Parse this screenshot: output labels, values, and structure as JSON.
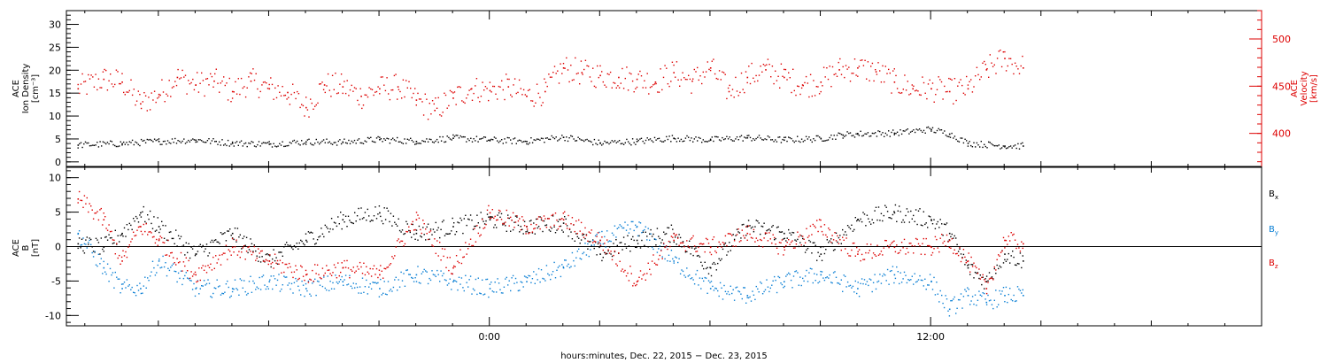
{
  "chart_data": [
    {
      "type": "scatter",
      "left_axis": {
        "label_lines": [
          "ACE",
          "Ion Density",
          "[cm⁻³]"
        ],
        "ylim": [
          -1,
          33
        ],
        "ticks": [
          0,
          5,
          10,
          15,
          20,
          25,
          30
        ],
        "color": "#000000"
      },
      "right_axis": {
        "label_lines": [
          "ACE",
          "Velocity",
          "[km/s]"
        ],
        "ylim": [
          365,
          530
        ],
        "ticks": [
          400,
          450,
          500
        ],
        "color": "#dd0000"
      },
      "series": [
        {
          "color": "#000000",
          "axis": "left",
          "x": [
            -11.2,
            -10,
            -9,
            -8,
            -7,
            -6,
            -5,
            -4,
            -3,
            -2,
            -1,
            0,
            1,
            2,
            3,
            4,
            5,
            6,
            7,
            8,
            9,
            9.6,
            10,
            11,
            12,
            12.5,
            13,
            14,
            14.5
          ],
          "values": [
            3.8,
            4.1,
            4.6,
            4.9,
            4.2,
            4.0,
            4.5,
            4.4,
            5.0,
            4.6,
            5.3,
            4.9,
            4.6,
            5.5,
            4.2,
            4.6,
            5.3,
            4.9,
            5.4,
            4.9,
            5.2,
            6.0,
            6.2,
            6.4,
            7.2,
            6.2,
            4.2,
            3.6,
            3.6
          ]
        },
        {
          "color": "#dd0000",
          "axis": "right",
          "x": [
            -11.2,
            -10.5,
            -10,
            -9.5,
            -9,
            -8.5,
            -8,
            -7.5,
            -7,
            -6.5,
            -6,
            -5.5,
            -5,
            -4.5,
            -4,
            -3.5,
            -3,
            -2.5,
            -2,
            -1.5,
            -1,
            -0.5,
            0,
            0.5,
            1,
            1.5,
            2,
            2.5,
            3,
            3.5,
            4,
            4.5,
            5,
            5.5,
            6,
            6.5,
            7,
            7.5,
            8,
            8.5,
            9,
            9.5,
            10,
            10.5,
            11,
            11.5,
            12,
            12.5,
            13,
            13.5,
            14,
            14.5
          ],
          "values": [
            448,
            458,
            455,
            432,
            442,
            460,
            452,
            456,
            445,
            456,
            448,
            444,
            428,
            452,
            450,
            440,
            448,
            450,
            436,
            425,
            438,
            448,
            446,
            450,
            440,
            445,
            470,
            465,
            462,
            460,
            458,
            455,
            465,
            456,
            470,
            445,
            460,
            468,
            460,
            452,
            455,
            468,
            470,
            466,
            455,
            448,
            448,
            445,
            448,
            468,
            480,
            470
          ]
        }
      ]
    },
    {
      "type": "scatter",
      "ylim": [
        -11.5,
        11.5
      ],
      "yticks": [
        -10,
        -5,
        0,
        5,
        10
      ],
      "zero_line": true,
      "axis_label_lines": [
        "ACE",
        "B",
        "[nT]"
      ],
      "series": [
        {
          "name": "B",
          "name_sub": "x",
          "color": "#000000",
          "x": [
            -11.2,
            -10.5,
            -10,
            -9.5,
            -9,
            -8,
            -7,
            -6,
            -5,
            -4,
            -3,
            -2,
            -1,
            0,
            1,
            2,
            3,
            4,
            5,
            6,
            7,
            8,
            9,
            10,
            11,
            12,
            12.5,
            13,
            13.5,
            14,
            14.5
          ],
          "values": [
            0.5,
            0,
            2,
            5,
            3,
            -1,
            2,
            -2,
            1,
            4,
            5,
            2,
            3,
            4,
            3,
            3.5,
            -1,
            1,
            2,
            -3,
            3,
            2,
            -1,
            4,
            5,
            4,
            2,
            -3,
            -5,
            -1,
            -2
          ]
        },
        {
          "name": "B",
          "name_sub": "y",
          "color": "#0a7fd4",
          "x": [
            -11.2,
            -10.5,
            -10,
            -9.5,
            -9,
            -8,
            -7,
            -6,
            -5,
            -4,
            -3,
            -2,
            -1,
            0,
            1,
            2,
            3,
            4,
            5,
            6,
            7,
            8,
            9,
            10,
            11,
            12,
            12.5,
            13,
            13.5,
            14,
            14.5
          ],
          "values": [
            2,
            -3,
            -6,
            -6,
            -2,
            -6,
            -6,
            -5,
            -6,
            -5,
            -6,
            -4,
            -5,
            -6,
            -5,
            -3,
            1,
            3,
            -2,
            -6,
            -7,
            -5,
            -4,
            -6,
            -4,
            -5,
            -9,
            -7,
            -8,
            -7,
            -7
          ]
        },
        {
          "name": "B",
          "name_sub": "z",
          "color": "#dd0000",
          "x": [
            -11.2,
            -10.5,
            -10,
            -9.5,
            -9,
            -8,
            -7,
            -6,
            -5,
            -4,
            -3,
            -2,
            -1,
            0,
            1,
            2,
            3,
            4,
            5,
            6,
            7,
            8,
            9,
            10,
            11,
            12,
            12.5,
            13,
            13.5,
            14,
            14.5
          ],
          "values": [
            7,
            4,
            -2,
            3,
            1,
            -4,
            0,
            -2,
            -4,
            -3,
            -4,
            4,
            -3,
            5,
            3,
            4,
            1,
            -5,
            1,
            0,
            2,
            0,
            3,
            -1,
            0,
            0,
            1,
            -2,
            -6,
            1,
            0.5
          ]
        }
      ]
    }
  ],
  "x_axis": {
    "xlim": [
      -11.5,
      21
    ],
    "major_ticks": [
      0,
      12
    ],
    "tick_labels": [
      "0:00",
      "12:00"
    ],
    "label": "hours:minutes, Dec. 22, 2015 − Dec. 23, 2015"
  }
}
